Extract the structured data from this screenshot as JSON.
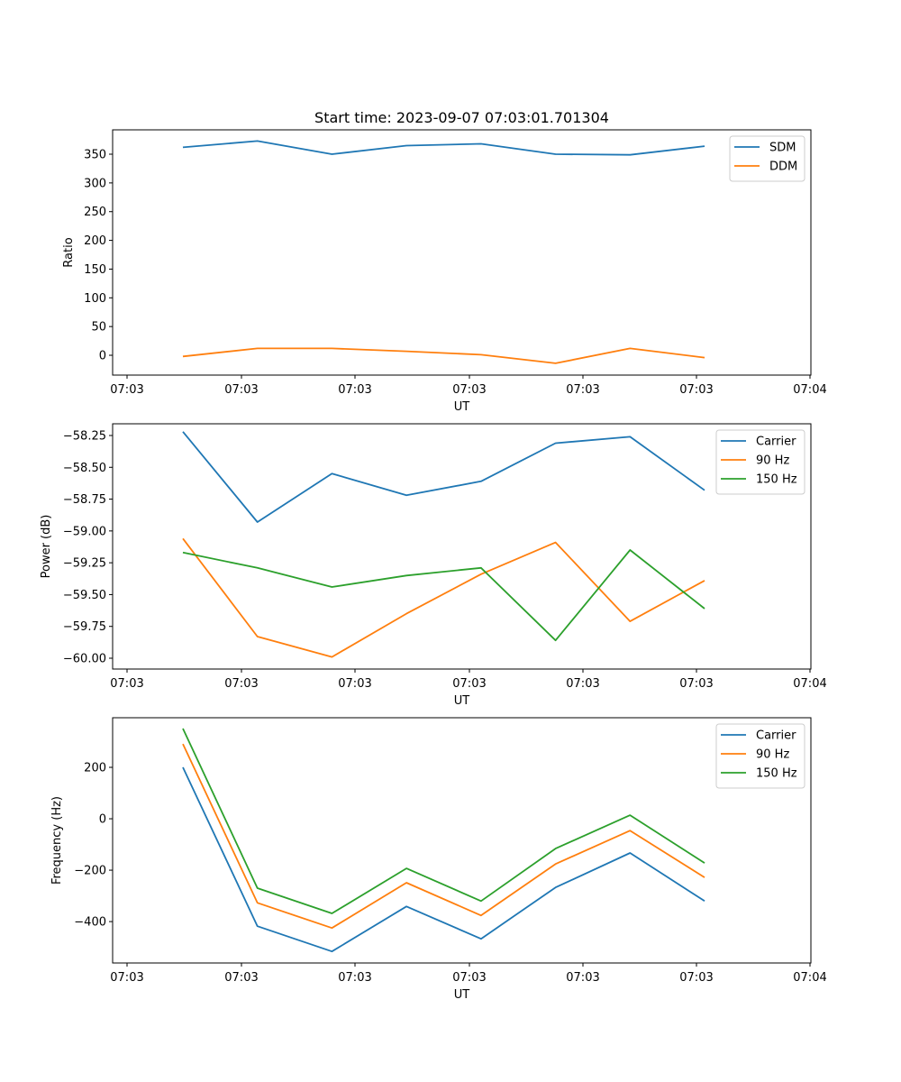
{
  "chart_data": [
    {
      "type": "line",
      "title": "Start time: 2023-09-07 07:03:01.701304",
      "xlabel": "UT",
      "ylabel": "Ratio",
      "x_tick_labels": [
        "07:03",
        "07:03",
        "07:03",
        "07:03",
        "07:03",
        "07:03",
        "07:04"
      ],
      "y_ticks": [
        0,
        50,
        100,
        150,
        200,
        250,
        300,
        350
      ],
      "y_tick_labels": [
        "0",
        "50",
        "100",
        "150",
        "200",
        "250",
        "300",
        "350"
      ],
      "ylim": [
        -34.5,
        392.4
      ],
      "x": [
        1,
        2,
        3,
        4,
        5,
        6,
        7,
        8
      ],
      "legend_position": "top-right",
      "grid": false,
      "series": [
        {
          "name": "SDM",
          "color": "#1f77b4",
          "values": [
            362,
            373,
            350,
            365,
            368,
            350,
            349,
            364
          ]
        },
        {
          "name": "DDM",
          "color": "#ff7f0e",
          "values": [
            -2,
            12,
            12,
            7,
            1,
            -14,
            12,
            -4
          ]
        }
      ]
    },
    {
      "type": "line",
      "title": "",
      "xlabel": "UT",
      "ylabel": "Power (dB)",
      "x_tick_labels": [
        "07:03",
        "07:03",
        "07:03",
        "07:03",
        "07:03",
        "07:03",
        "07:04"
      ],
      "y_ticks": [
        -60.0,
        -59.75,
        -59.5,
        -59.25,
        -59.0,
        -58.75,
        -58.5,
        -58.25
      ],
      "y_tick_labels": [
        "−60.00",
        "−59.75",
        "−59.50",
        "−59.25",
        "−59.00",
        "−58.75",
        "−58.50",
        "−58.25"
      ],
      "ylim": [
        -60.085,
        -58.158
      ],
      "x": [
        1,
        2,
        3,
        4,
        5,
        6,
        7,
        8
      ],
      "legend_position": "top-right",
      "grid": false,
      "series": [
        {
          "name": "Carrier",
          "color": "#1f77b4",
          "values": [
            -58.22,
            -58.93,
            -58.55,
            -58.72,
            -58.61,
            -58.31,
            -58.26,
            -58.68
          ]
        },
        {
          "name": "90 Hz",
          "color": "#ff7f0e",
          "values": [
            -59.06,
            -59.83,
            -59.99,
            -59.65,
            -59.34,
            -59.09,
            -59.71,
            -59.39
          ]
        },
        {
          "name": "150 Hz",
          "color": "#2ca02c",
          "values": [
            -59.17,
            -59.29,
            -59.44,
            -59.35,
            -59.29,
            -59.86,
            -59.15,
            -59.61
          ]
        }
      ]
    },
    {
      "type": "line",
      "title": "",
      "xlabel": "UT",
      "ylabel": "Frequency (Hz)",
      "x_tick_labels": [
        "07:03",
        "07:03",
        "07:03",
        "07:03",
        "07:03",
        "07:03",
        "07:04"
      ],
      "y_ticks": [
        -400,
        -200,
        0,
        200
      ],
      "y_tick_labels": [
        "−400",
        "−200",
        "0",
        "200"
      ],
      "ylim": [
        -561,
        393
      ],
      "x": [
        1,
        2,
        3,
        4,
        5,
        6,
        7,
        8
      ],
      "legend_position": "top-right",
      "grid": false,
      "series": [
        {
          "name": "Carrier",
          "color": "#1f77b4",
          "values": [
            200,
            -418,
            -516,
            -341,
            -467,
            -267,
            -133,
            -320
          ]
        },
        {
          "name": "90 Hz",
          "color": "#ff7f0e",
          "values": [
            291,
            -327,
            -425,
            -249,
            -376,
            -176,
            -46,
            -228
          ]
        },
        {
          "name": "150 Hz",
          "color": "#2ca02c",
          "values": [
            351,
            -270,
            -368,
            -193,
            -320,
            -116,
            14,
            -172
          ]
        }
      ]
    }
  ]
}
